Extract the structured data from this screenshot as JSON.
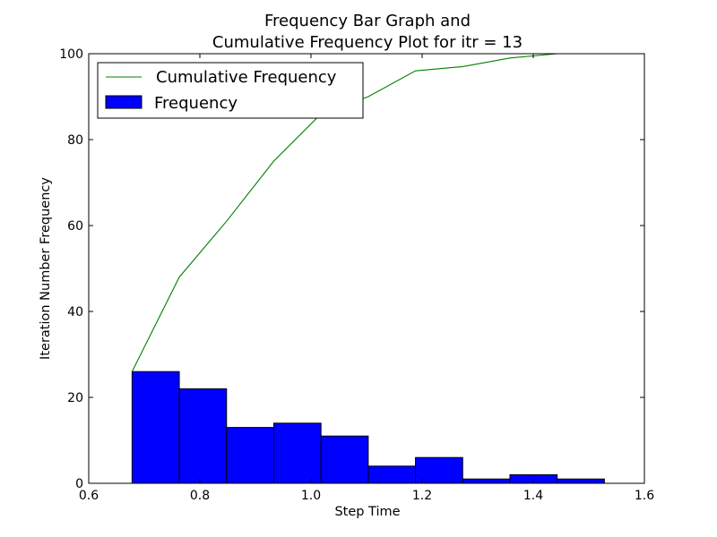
{
  "chart_data": {
    "type": "bar",
    "title_line1": "Frequency Bar Graph and",
    "title_line2": "Cumulative Frequency Plot for itr = 13",
    "xlabel": "Step Time",
    "ylabel": "Iteration Number Frequency",
    "xlim": [
      0.6,
      1.6
    ],
    "ylim": [
      0,
      100
    ],
    "xticks": [
      0.6,
      0.8,
      1.0,
      1.2,
      1.4,
      1.6
    ],
    "xtick_labels": [
      "0.6",
      "0.8",
      "1.0",
      "1.2",
      "1.4",
      "1.6"
    ],
    "yticks": [
      0,
      20,
      40,
      60,
      80,
      100
    ],
    "ytick_labels": [
      "0",
      "20",
      "40",
      "60",
      "80",
      "100"
    ],
    "grid": false,
    "legend_position": "upper-left",
    "series": [
      {
        "name": "Frequency",
        "kind": "bar",
        "color": "#0000ff",
        "bin_edges": [
          0.678,
          0.763,
          0.848,
          0.933,
          1.018,
          1.103,
          1.188,
          1.273,
          1.358,
          1.443,
          1.528
        ],
        "values": [
          26,
          22,
          13,
          14,
          11,
          4,
          6,
          1,
          2,
          1
        ]
      },
      {
        "name": "Cumulative Frequency",
        "kind": "line",
        "color": "#008000",
        "x": [
          0.678,
          0.763,
          0.848,
          0.933,
          1.018,
          1.103,
          1.188,
          1.273,
          1.358,
          1.443
        ],
        "y": [
          26,
          48,
          61,
          75,
          86,
          90,
          96,
          97,
          99,
          100
        ]
      }
    ]
  }
}
